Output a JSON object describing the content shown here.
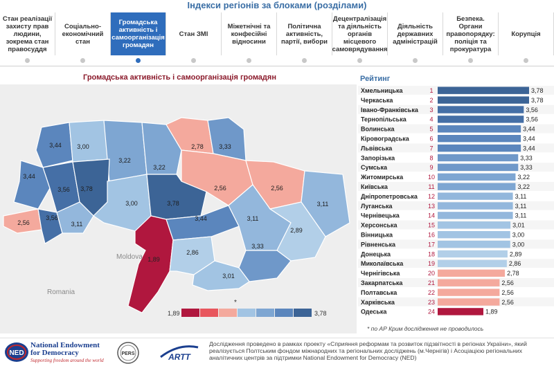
{
  "page": {
    "title": "Індекси регіонів за блоками (розділами)"
  },
  "tabs": [
    {
      "label": "Стан реалізації захисту прав людини, зокрема стан правосуддя",
      "active": false
    },
    {
      "label": "Соціально-економічний стан",
      "active": false
    },
    {
      "label": "Громадська активність і самоорганізація громадян",
      "active": true
    },
    {
      "label": "Стан ЗМІ",
      "active": false
    },
    {
      "label": "Міжетнічні та конфесійні відносини",
      "active": false
    },
    {
      "label": "Політична активність, партії, вибори",
      "active": false
    },
    {
      "label": "Децентралізація та діяльність органів місцевого самоврядування",
      "active": false
    },
    {
      "label": "Діяльність державних адміністрацій",
      "active": false
    },
    {
      "label": "Безпека. Органи правопорядку: поліція та прокуратура",
      "active": false
    },
    {
      "label": "Корупція",
      "active": false
    }
  ],
  "map": {
    "title": "Громадська активність і самоорганізація громадян",
    "neighbors": [
      "Moldova",
      "Romania"
    ],
    "crimea_mark": "*",
    "legend": {
      "min": "1,89",
      "max": "3,78"
    },
    "regions": [
      {
        "name": "Volyn",
        "value": "3,44",
        "color": "#5b86bd"
      },
      {
        "name": "Rivne",
        "value": "3,00",
        "color": "#a2c4e3"
      },
      {
        "name": "Zhytomyr",
        "value": "3,22",
        "color": "#7ea6d2"
      },
      {
        "name": "Kyiv",
        "value": "3,22",
        "color": "#7ea6d2"
      },
      {
        "name": "Chernihiv",
        "value": "2,78",
        "color": "#f4a99d"
      },
      {
        "name": "Sumy",
        "value": "3,33",
        "color": "#6f98c9"
      },
      {
        "name": "Lviv",
        "value": "3,44",
        "color": "#5b86bd"
      },
      {
        "name": "Ternopil",
        "value": "3,56",
        "color": "#456fa6"
      },
      {
        "name": "Khmelnytskyi",
        "value": "3,78",
        "color": "#3c6496"
      },
      {
        "name": "Vinnytsia",
        "value": "3,00",
        "color": "#a2c4e3"
      },
      {
        "name": "Cherkasy",
        "value": "3,78",
        "color": "#3c6496"
      },
      {
        "name": "Poltava",
        "value": "2,56",
        "color": "#f4a99d"
      },
      {
        "name": "Kharkiv",
        "value": "2,56",
        "color": "#f4a99d"
      },
      {
        "name": "Luhansk",
        "value": "3,11",
        "color": "#93b7dc"
      },
      {
        "name": "Zakarpattia",
        "value": "2,56",
        "color": "#f4a99d"
      },
      {
        "name": "Ivano-Frankivsk",
        "value": "3,56",
        "color": "#456fa6"
      },
      {
        "name": "Chernivtsi",
        "value": "3,11",
        "color": "#93b7dc"
      },
      {
        "name": "Kirovohrad",
        "value": "3,44",
        "color": "#5b86bd"
      },
      {
        "name": "Dnipropetrovsk",
        "value": "3,11",
        "color": "#93b7dc"
      },
      {
        "name": "Donetsk",
        "value": "2,89",
        "color": "#b2cfe8"
      },
      {
        "name": "Odesa",
        "value": "1,89",
        "color": "#b0173e"
      },
      {
        "name": "Mykolaiv",
        "value": "2,86",
        "color": "#b2cfe8"
      },
      {
        "name": "Zaporizhzhia",
        "value": "3,33",
        "color": "#6f98c9"
      },
      {
        "name": "Kherson",
        "value": "3,01",
        "color": "#a2c4e3"
      }
    ]
  },
  "chart_data": {
    "type": "bar",
    "title": "Рейтинг",
    "categories": [
      "Хмельницька",
      "Черкаська",
      "Івано-Франківська",
      "Тернопільська",
      "Волинська",
      "Кіровоградська",
      "Львівська",
      "Запорізька",
      "Сумська",
      "Житомирська",
      "Київська",
      "Дніпропетровська",
      "Луганська",
      "Чернівецька",
      "Херсонська",
      "Вінницька",
      "Рівненська",
      "Донецька",
      "Миколаївська",
      "Чернігівська",
      "Закарпатська",
      "Полтавська",
      "Харківська",
      "Одеська"
    ],
    "ranks": [
      "1",
      "2",
      "3",
      "4",
      "5",
      "6",
      "7",
      "8",
      "9",
      "10",
      "11",
      "12",
      "13",
      "14",
      "15",
      "16",
      "17",
      "18",
      "19",
      "20",
      "21",
      "22",
      "23",
      "24"
    ],
    "values": [
      3.78,
      3.78,
      3.56,
      3.56,
      3.44,
      3.44,
      3.44,
      3.33,
      3.33,
      3.22,
      3.22,
      3.11,
      3.11,
      3.11,
      3.01,
      3.0,
      3.0,
      2.89,
      2.86,
      2.78,
      2.56,
      2.56,
      2.56,
      1.89
    ],
    "value_labels": [
      "3,78",
      "3,78",
      "3,56",
      "3,56",
      "3,44",
      "3,44",
      "3,44",
      "3,33",
      "3,33",
      "3,22",
      "3,22",
      "3,11",
      "3,11",
      "3,11",
      "3,01",
      "3,00",
      "3,00",
      "2,89",
      "2,86",
      "2,78",
      "2,56",
      "2,56",
      "2,56",
      "1,89"
    ],
    "colors": [
      "#3c6496",
      "#3c6496",
      "#456fa6",
      "#456fa6",
      "#5b86bd",
      "#5b86bd",
      "#5b86bd",
      "#6f98c9",
      "#6f98c9",
      "#7ea6d2",
      "#7ea6d2",
      "#93b7dc",
      "#93b7dc",
      "#93b7dc",
      "#a2c4e3",
      "#a2c4e3",
      "#a2c4e3",
      "#b2cfe8",
      "#b2cfe8",
      "#f4a99d",
      "#f4a99d",
      "#f4a99d",
      "#f4a99d",
      "#b0173e"
    ],
    "xlim": [
      0,
      3.78
    ]
  },
  "footnote": "* по АР Крим дослідження не проводилось",
  "footer": {
    "ned_name": "National Endowment for Democracy",
    "ned_tagline": "Supporting freedom around the world",
    "ned_logo_text": "NED",
    "pers_logo_text": "PERS",
    "artt_logo_text": "ARTT",
    "text": "Дослідження проведено в рамках проекту «Сприяння реформам та розвиток підзвітності в регіонах України», який реалізується  Полтським фондом міжнародних та регіональних досліджень (м.Чернігів) і Асоціацією регіональних аналітичних центрів за підтримки National Endowment for Democracy (NED)"
  },
  "colors": {
    "accent": "#2f6dbc",
    "title": "#3a6ea5",
    "map_title": "#8b1a2b"
  }
}
